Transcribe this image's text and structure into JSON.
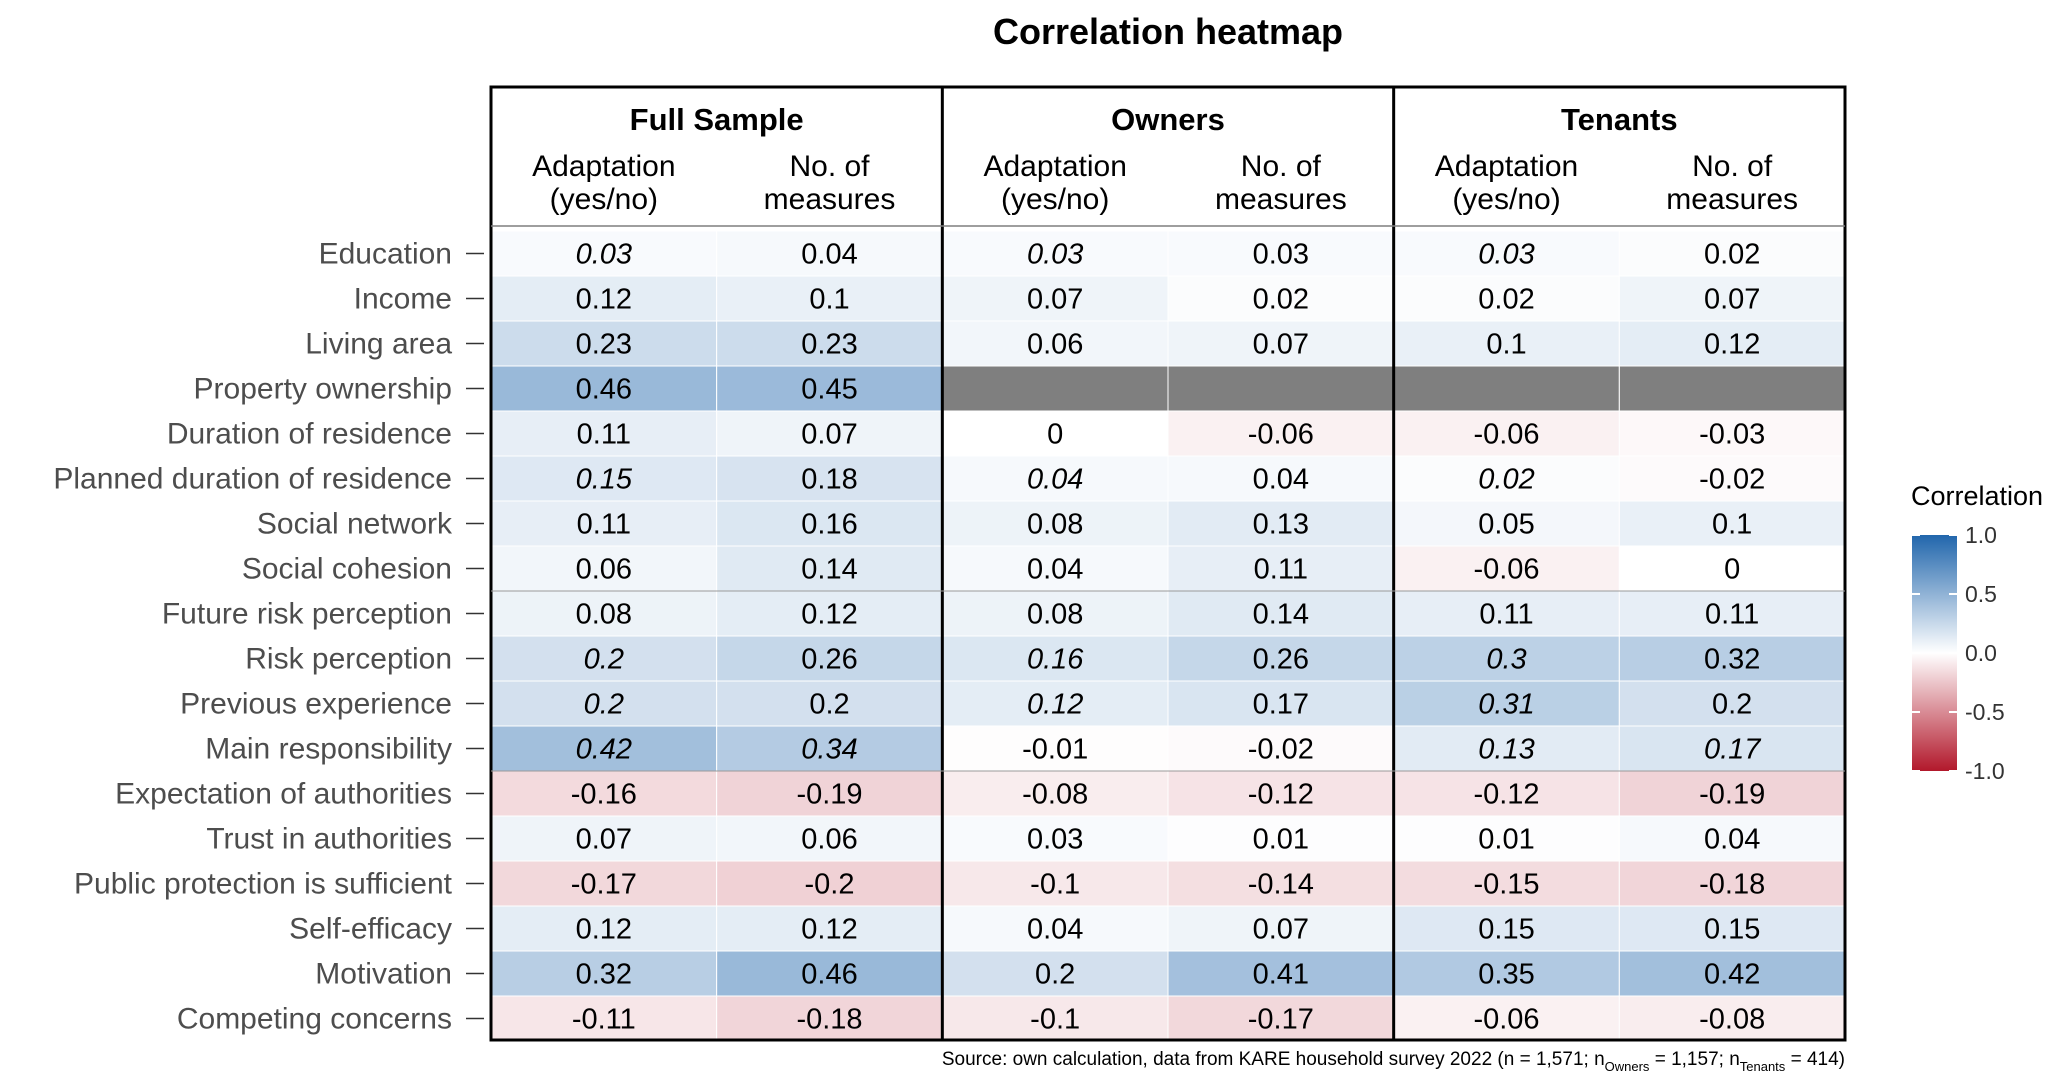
{
  "chart_data": {
    "type": "heatmap",
    "title": "Correlation heatmap",
    "groups": [
      "Full Sample",
      "Owners",
      "Tenants"
    ],
    "subcolumns": [
      [
        "Adaptation",
        "(yes/no)"
      ],
      [
        "No. of",
        "measures"
      ]
    ],
    "columns": [
      "Full Sample - Adaptation (yes/no)",
      "Full Sample - No. of measures",
      "Owners - Adaptation (yes/no)",
      "Owners - No. of measures",
      "Tenants - Adaptation (yes/no)",
      "Tenants - No. of measures"
    ],
    "rows": [
      "Education",
      "Income",
      "Living area",
      "Property ownership",
      "Duration of residence",
      "Planned duration of residence",
      "Social network",
      "Social cohesion",
      "Future risk perception",
      "Risk perception",
      "Previous experience",
      "Main responsibility",
      "Expectation of authorities",
      "Trust in authorities",
      "Public protection is sufficient",
      "Self-efficacy",
      "Motivation",
      "Competing concerns"
    ],
    "values": [
      [
        0.03,
        0.04,
        0.03,
        0.03,
        0.03,
        0.02
      ],
      [
        0.12,
        0.1,
        0.07,
        0.02,
        0.02,
        0.07
      ],
      [
        0.23,
        0.23,
        0.06,
        0.07,
        0.1,
        0.12
      ],
      [
        0.46,
        0.45,
        null,
        null,
        null,
        null
      ],
      [
        0.11,
        0.07,
        0,
        -0.06,
        -0.06,
        -0.03
      ],
      [
        0.15,
        0.18,
        0.04,
        0.04,
        0.02,
        -0.02
      ],
      [
        0.11,
        0.16,
        0.08,
        0.13,
        0.05,
        0.1
      ],
      [
        0.06,
        0.14,
        0.04,
        0.11,
        -0.06,
        0
      ],
      [
        0.08,
        0.12,
        0.08,
        0.14,
        0.11,
        0.11
      ],
      [
        0.2,
        0.26,
        0.16,
        0.26,
        0.3,
        0.32
      ],
      [
        0.2,
        0.2,
        0.12,
        0.17,
        0.31,
        0.2
      ],
      [
        0.42,
        0.34,
        -0.01,
        -0.02,
        0.13,
        0.17
      ],
      [
        -0.16,
        -0.19,
        -0.08,
        -0.12,
        -0.12,
        -0.19
      ],
      [
        0.07,
        0.06,
        0.03,
        0.01,
        0.01,
        0.04
      ],
      [
        -0.17,
        -0.2,
        -0.1,
        -0.14,
        -0.15,
        -0.18
      ],
      [
        0.12,
        0.12,
        0.04,
        0.07,
        0.15,
        0.15
      ],
      [
        0.32,
        0.46,
        0.2,
        0.41,
        0.35,
        0.42
      ],
      [
        -0.11,
        -0.18,
        -0.1,
        -0.17,
        -0.06,
        -0.08
      ]
    ],
    "italic": [
      [
        true,
        false,
        true,
        false,
        true,
        false
      ],
      [
        false,
        false,
        false,
        false,
        false,
        false
      ],
      [
        false,
        false,
        false,
        false,
        false,
        false
      ],
      [
        false,
        false,
        false,
        false,
        false,
        false
      ],
      [
        false,
        false,
        false,
        false,
        false,
        false
      ],
      [
        true,
        false,
        true,
        false,
        true,
        false
      ],
      [
        false,
        false,
        false,
        false,
        false,
        false
      ],
      [
        false,
        false,
        false,
        false,
        false,
        false
      ],
      [
        false,
        false,
        false,
        false,
        false,
        false
      ],
      [
        true,
        false,
        true,
        false,
        true,
        false
      ],
      [
        true,
        false,
        true,
        false,
        true,
        false
      ],
      [
        true,
        true,
        false,
        false,
        true,
        true
      ],
      [
        false,
        false,
        false,
        false,
        false,
        false
      ],
      [
        false,
        false,
        false,
        false,
        false,
        false
      ],
      [
        false,
        false,
        false,
        false,
        false,
        false
      ],
      [
        false,
        false,
        false,
        false,
        false,
        false
      ],
      [
        false,
        false,
        false,
        false,
        false,
        false
      ],
      [
        false,
        false,
        false,
        false,
        false,
        false
      ]
    ],
    "missing_color": "#7f7f7f",
    "legend": {
      "title": "Correlation",
      "ticks": [
        "1.0",
        "0.5",
        "0.0",
        "-0.5",
        "-1.0"
      ],
      "range": [
        -1,
        1
      ],
      "colors": {
        "low": "#b2182b",
        "mid": "#ffffff",
        "high": "#2166ac"
      },
      "position": "right"
    },
    "source_note": {
      "prefix": "Source: own calculation, data from KARE household survey 2022 (n = 1,571; n",
      "sub1": "Owners",
      "mid": " = 1,157; n",
      "sub2": "Tenants",
      "suffix": " = 414)"
    }
  }
}
